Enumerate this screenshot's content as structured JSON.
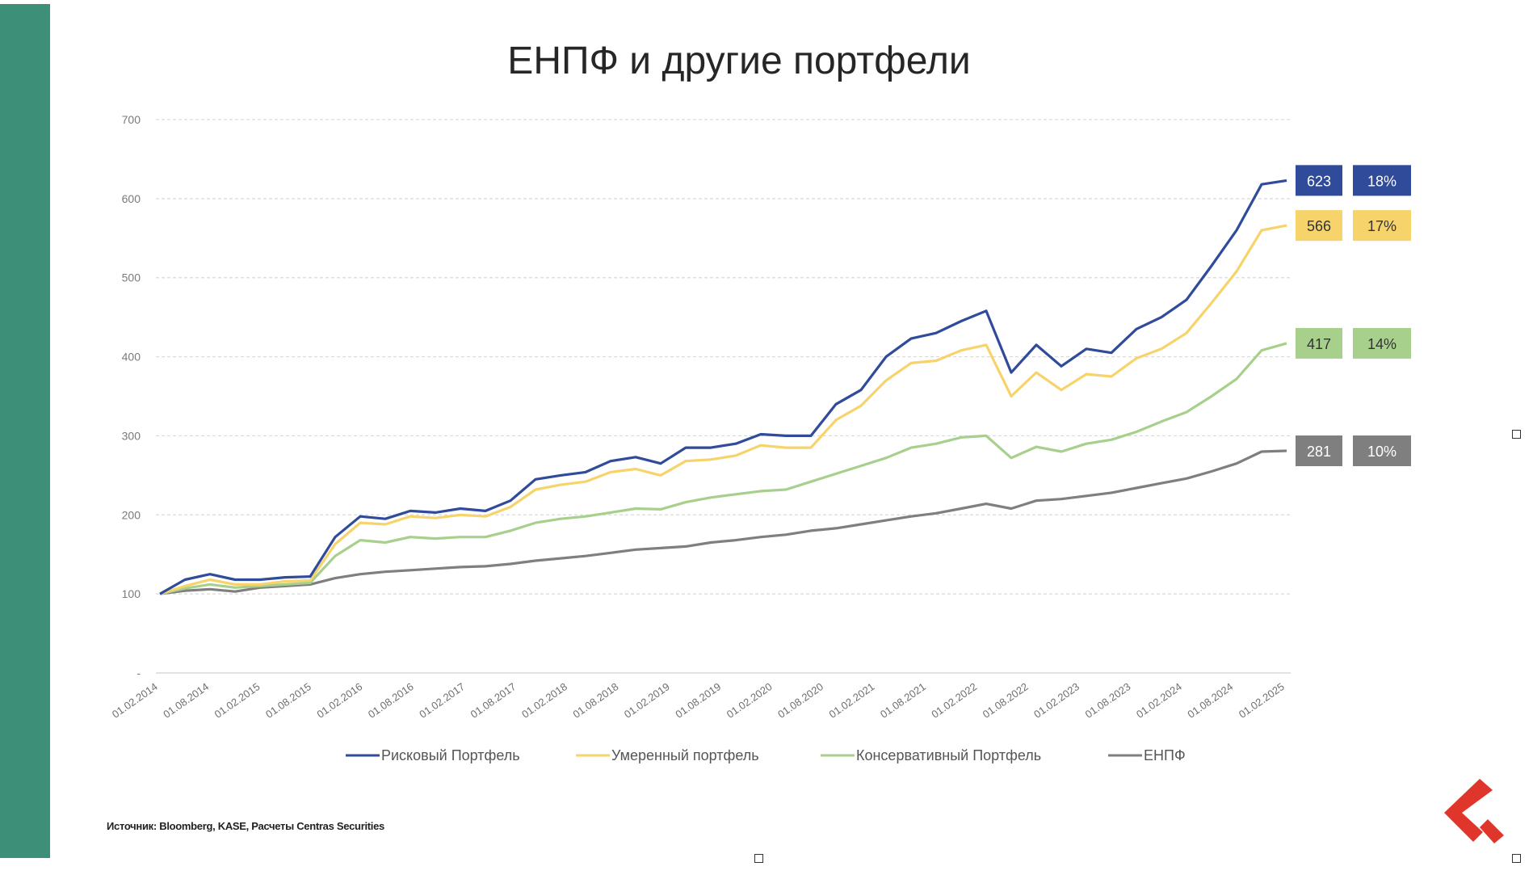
{
  "colors": {
    "sidebar": "#3e8f77",
    "risk": "#2f4b9a",
    "moderate": "#f7d36b",
    "conservative": "#a8d08d",
    "enpf": "#7f7f7f",
    "logo": "#e0352b"
  },
  "source_note": "Источник: Bloomberg, KASE, Расчеты Centras Securities",
  "chart_data": {
    "type": "line",
    "title": "ЕНПФ и другие портфели",
    "ylim": [
      0,
      700
    ],
    "yticks": [
      "-",
      "100",
      "200",
      "300",
      "400",
      "500",
      "600",
      "700"
    ],
    "grid": true,
    "legend_position": "bottom",
    "xtick_labels": [
      "01.02.2014",
      "01.08.2014",
      "01.02.2015",
      "01.08.2015",
      "01.02.2016",
      "01.08.2016",
      "01.02.2017",
      "01.08.2017",
      "01.02.2018",
      "01.08.2018",
      "01.02.2019",
      "01.08.2019",
      "01.02.2020",
      "01.08.2020",
      "01.02.2021",
      "01.08.2021",
      "01.02.2022",
      "01.08.2022",
      "01.02.2023",
      "01.08.2023",
      "01.02.2024",
      "01.08.2024",
      "01.02.2025"
    ],
    "x": [
      "01.02.2014",
      "01.05.2014",
      "01.08.2014",
      "01.11.2014",
      "01.02.2015",
      "01.05.2015",
      "01.08.2015",
      "01.11.2015",
      "01.02.2016",
      "01.05.2016",
      "01.08.2016",
      "01.11.2016",
      "01.02.2017",
      "01.05.2017",
      "01.08.2017",
      "01.11.2017",
      "01.02.2018",
      "01.05.2018",
      "01.08.2018",
      "01.11.2018",
      "01.02.2019",
      "01.05.2019",
      "01.08.2019",
      "01.11.2019",
      "01.02.2020",
      "01.05.2020",
      "01.08.2020",
      "01.11.2020",
      "01.02.2021",
      "01.05.2021",
      "01.08.2021",
      "01.11.2021",
      "01.02.2022",
      "01.05.2022",
      "01.08.2022",
      "01.11.2022",
      "01.02.2023",
      "01.05.2023",
      "01.08.2023",
      "01.11.2023",
      "01.02.2024",
      "01.05.2024",
      "01.08.2024",
      "01.11.2024",
      "01.02.2025",
      "01.05.2025"
    ],
    "series": [
      {
        "name": "Рисковый Портфель",
        "color": "#2f4b9a",
        "end_label": "623",
        "return_label": "18%",
        "values": [
          100,
          118,
          125,
          118,
          118,
          121,
          122,
          172,
          198,
          195,
          205,
          203,
          208,
          205,
          218,
          245,
          250,
          254,
          268,
          273,
          265,
          285,
          285,
          290,
          302,
          300,
          300,
          340,
          358,
          400,
          423,
          430,
          445,
          458,
          380,
          415,
          388,
          410,
          405,
          435,
          450,
          472,
          515,
          560,
          618,
          623
        ]
      },
      {
        "name": "Умеренный портфель",
        "color": "#f7d36b",
        "end_label": "566",
        "return_label": "17%",
        "values": [
          100,
          110,
          118,
          112,
          112,
          116,
          117,
          163,
          190,
          188,
          198,
          196,
          200,
          198,
          210,
          232,
          238,
          242,
          254,
          258,
          250,
          268,
          270,
          275,
          288,
          285,
          285,
          320,
          338,
          370,
          392,
          395,
          408,
          415,
          350,
          380,
          358,
          378,
          375,
          398,
          410,
          430,
          468,
          508,
          560,
          566
        ]
      },
      {
        "name": "Консервативный Портфель",
        "color": "#a8d08d",
        "end_label": "417",
        "return_label": "14%",
        "values": [
          100,
          107,
          112,
          108,
          110,
          112,
          114,
          148,
          168,
          165,
          172,
          170,
          172,
          172,
          180,
          190,
          195,
          198,
          203,
          208,
          207,
          216,
          222,
          226,
          230,
          232,
          242,
          252,
          262,
          272,
          285,
          290,
          298,
          300,
          272,
          286,
          280,
          290,
          295,
          305,
          318,
          330,
          350,
          372,
          408,
          417
        ]
      },
      {
        "name": "ЕНПФ",
        "color": "#7f7f7f",
        "end_label": "281",
        "return_label": "10%",
        "values": [
          100,
          104,
          106,
          103,
          108,
          110,
          112,
          120,
          125,
          128,
          130,
          132,
          134,
          135,
          138,
          142,
          145,
          148,
          152,
          156,
          158,
          160,
          165,
          168,
          172,
          175,
          180,
          183,
          188,
          193,
          198,
          202,
          208,
          214,
          208,
          218,
          220,
          224,
          228,
          234,
          240,
          246,
          255,
          265,
          280,
          281
        ]
      }
    ]
  }
}
